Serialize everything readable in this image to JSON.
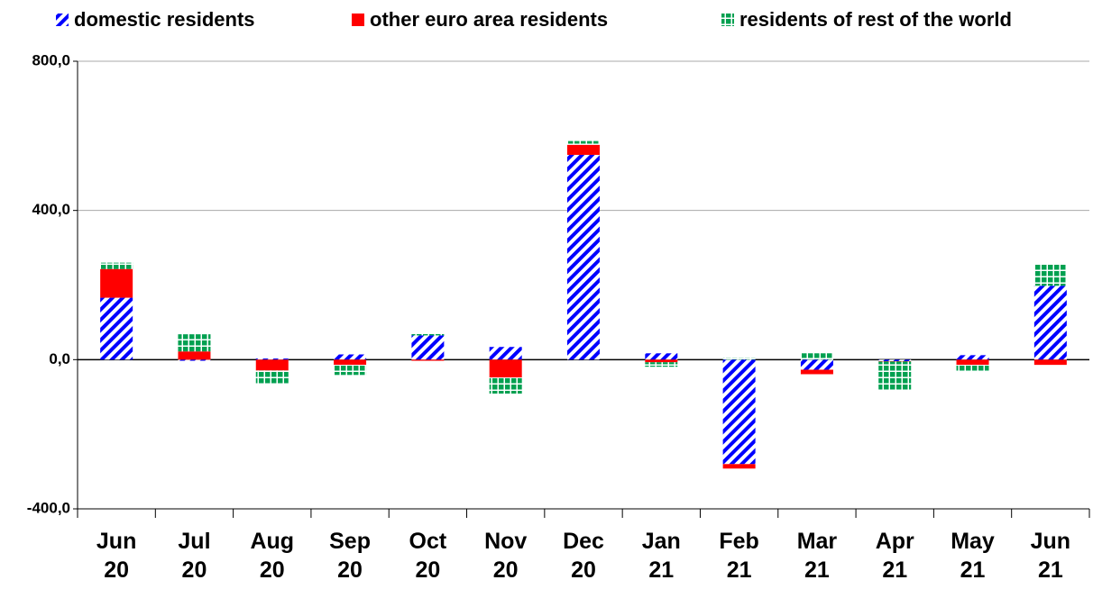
{
  "chart_data": {
    "type": "bar",
    "stacked": true,
    "categories": [
      "Jun 20",
      "Jul 20",
      "Aug 20",
      "Sep 20",
      "Oct 20",
      "Nov 20",
      "Dec 20",
      "Jan 21",
      "Feb 21",
      "Mar 21",
      "Apr 21",
      "May 21",
      "Jun 21"
    ],
    "series": [
      {
        "name": "domestic residents",
        "color": "#0000ff",
        "values": [
          166,
          -3,
          3,
          14,
          65,
          34,
          549,
          17,
          -280,
          -27,
          -4,
          12,
          198
        ]
      },
      {
        "name": "other euro area residents",
        "color": "#ff0000",
        "values": [
          77,
          22,
          -29,
          -14,
          -3,
          -48,
          27,
          -7,
          -12,
          -12,
          -1,
          -14,
          -14
        ]
      },
      {
        "name": "residents of rest of the world",
        "color": "#00a050",
        "values": [
          17,
          46,
          -36,
          -27,
          5,
          -43,
          10,
          -12,
          5,
          17,
          -75,
          -19,
          60
        ]
      }
    ],
    "ylim": [
      -400,
      800
    ],
    "yticks": [
      {
        "value": -400,
        "label": "-400,0"
      },
      {
        "value": 0,
        "label": "0,0"
      },
      {
        "value": 400,
        "label": "400,0"
      },
      {
        "value": 800,
        "label": "800,0"
      }
    ],
    "grid": true,
    "legend": "top"
  }
}
